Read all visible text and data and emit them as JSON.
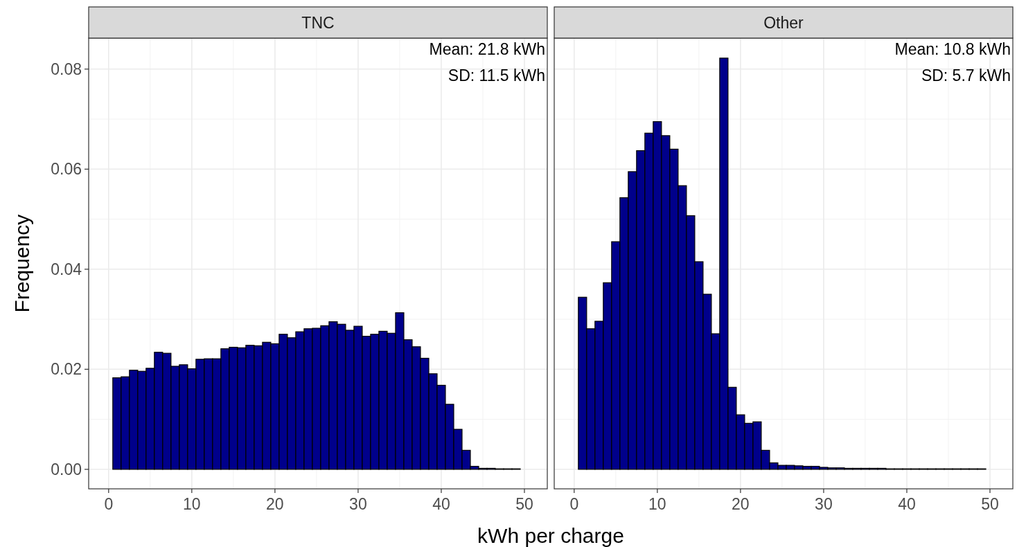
{
  "chart_data": [
    {
      "type": "histogram",
      "title": "TNC",
      "xlabel": "kWh per charge",
      "ylabel": "Frequency",
      "annotations": [
        "Mean: 21.8 kWh",
        "SD: 11.5 kWh"
      ],
      "color": "#00008b",
      "grid": true,
      "bins": [
        0.5,
        1.5,
        2.5,
        3.5,
        4.5,
        5.5,
        6.5,
        7.5,
        8.5,
        9.5,
        10.5,
        11.5,
        12.5,
        13.5,
        14.5,
        15.5,
        16.5,
        17.5,
        18.5,
        19.5,
        20.5,
        21.5,
        22.5,
        23.5,
        24.5,
        25.5,
        26.5,
        27.5,
        28.5,
        29.5,
        30.5,
        31.5,
        32.5,
        33.5,
        34.5,
        35.5,
        36.5,
        37.5,
        38.5,
        39.5,
        40.5,
        41.5,
        42.5,
        43.5,
        44.5,
        45.5,
        46.5,
        47.5,
        48.5,
        49.5
      ],
      "values": [
        0.0183,
        0.0185,
        0.0198,
        0.0196,
        0.0202,
        0.0234,
        0.0232,
        0.0206,
        0.0209,
        0.0201,
        0.022,
        0.0221,
        0.0221,
        0.0241,
        0.0244,
        0.0243,
        0.0248,
        0.0247,
        0.0254,
        0.0251,
        0.027,
        0.0263,
        0.0275,
        0.0281,
        0.0282,
        0.0287,
        0.0295,
        0.029,
        0.0278,
        0.0286,
        0.0266,
        0.027,
        0.0276,
        0.0272,
        0.0313,
        0.0259,
        0.0245,
        0.0222,
        0.0191,
        0.0168,
        0.013,
        0.008,
        0.0038,
        0.0006,
        0.0002,
        0.0002,
        0.0001,
        0.0001,
        0.0001
      ],
      "xlim": [
        -2.4,
        52.75
      ],
      "xticks": [
        0,
        10,
        20,
        30,
        40,
        50
      ],
      "ylim": [
        -0.0039,
        0.0862
      ],
      "yticks": [
        {
          "value": 0,
          "label": "0.00"
        },
        {
          "value": 0.02,
          "label": "0.02"
        },
        {
          "value": 0.04,
          "label": "0.04"
        },
        {
          "value": 0.06,
          "label": "0.06"
        },
        {
          "value": 0.08,
          "label": "0.08"
        }
      ]
    },
    {
      "type": "histogram",
      "title": "Other",
      "annotations": [
        "Mean: 10.8 kWh",
        "SD: 5.7 kWh"
      ],
      "color": "#00008b",
      "grid": true,
      "tick_labels": "x",
      "bins": [
        0.5,
        1.5,
        2.5,
        3.5,
        4.5,
        5.5,
        6.5,
        7.5,
        8.5,
        9.5,
        10.5,
        11.5,
        12.5,
        13.5,
        14.5,
        15.5,
        16.5,
        17.5,
        18.5,
        19.5,
        20.5,
        21.5,
        22.5,
        23.5,
        24.5,
        25.5,
        26.5,
        27.5,
        28.5,
        29.5,
        30.5,
        31.5,
        32.5,
        33.5,
        34.5,
        35.5,
        36.5,
        37.5,
        38.5,
        39.5,
        40.5,
        41.5,
        42.5,
        43.5,
        44.5,
        45.5,
        46.5,
        47.5,
        48.5,
        49.5
      ],
      "yticks": [
        0,
        0.02,
        0.04,
        0.06,
        0.08
      ],
      "values": [
        0.0344,
        0.0281,
        0.0296,
        0.0373,
        0.0455,
        0.0543,
        0.0595,
        0.0637,
        0.0672,
        0.0695,
        0.0667,
        0.064,
        0.0567,
        0.0507,
        0.0415,
        0.035,
        0.0271,
        0.0822,
        0.0164,
        0.0109,
        0.0092,
        0.0095,
        0.0038,
        0.0013,
        0.0008,
        0.0008,
        0.0007,
        0.0006,
        0.0006,
        0.0004,
        0.0003,
        0.0003,
        0.0002,
        0.0002,
        0.0002,
        0.0002,
        0.0002,
        0.0001,
        0.0001,
        0.0001,
        0.0001,
        0.0001,
        0.0001,
        0.0001,
        0.0001,
        0.0001,
        0.0001,
        0.0001,
        0.0001
      ],
      "xlim": [
        -2.4,
        52.75
      ],
      "xticks": [
        0,
        10,
        20,
        30,
        40,
        50
      ],
      "ylim": [
        -0.0039,
        0.0862
      ]
    }
  ]
}
